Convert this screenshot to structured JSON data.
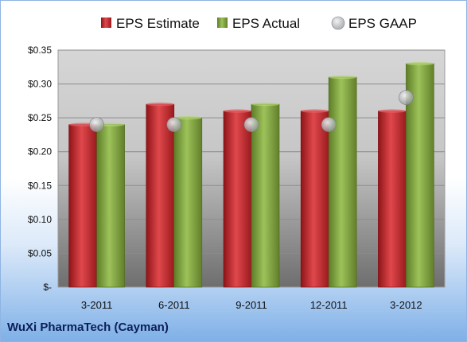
{
  "chart_data": {
    "type": "bar",
    "categories": [
      "3-2011",
      "6-2011",
      "9-2011",
      "12-2011",
      "3-2012"
    ],
    "series": [
      {
        "name": "EPS Estimate",
        "kind": "bar",
        "color": "#c0282d",
        "values": [
          0.24,
          0.27,
          0.26,
          0.26,
          0.26
        ]
      },
      {
        "name": "EPS Actual",
        "kind": "bar",
        "color": "#7fa33d",
        "values": [
          0.24,
          0.25,
          0.27,
          0.31,
          0.33
        ]
      },
      {
        "name": "EPS GAAP",
        "kind": "marker",
        "color": "#b4b8bc",
        "values": [
          0.24,
          0.24,
          0.24,
          0.24,
          0.28
        ]
      }
    ],
    "ylim": [
      0,
      0.35
    ],
    "yticks": [
      0,
      0.05,
      0.1,
      0.15,
      0.2,
      0.25,
      0.3,
      0.35
    ],
    "ytick_labels": [
      "$-",
      "$0.05",
      "$0.10",
      "$0.15",
      "$0.20",
      "$0.25",
      "$0.30",
      "$0.35"
    ],
    "grid": true,
    "legend_position": "top"
  },
  "footer": {
    "company": "WuXi PharmaTech (Cayman)"
  }
}
